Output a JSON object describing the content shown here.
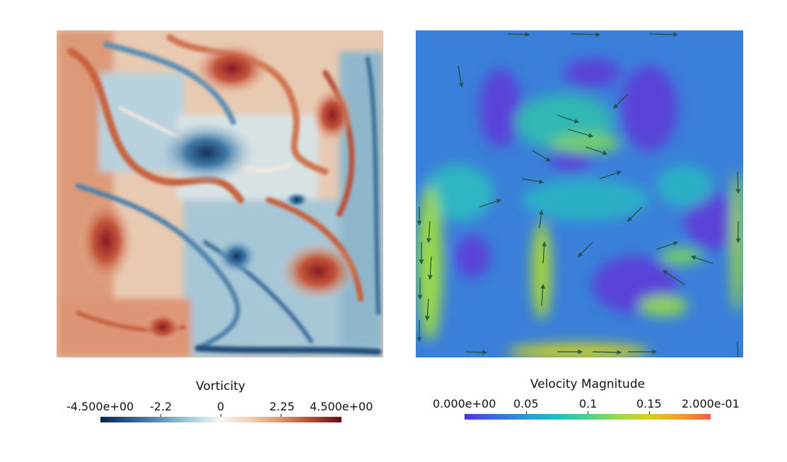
{
  "colorbars": {
    "vorticity": {
      "title": "Vorticity",
      "ticks": [
        "-4.500e+00",
        "-2.2",
        "0",
        "2.25",
        "4.500e+00"
      ],
      "colormap": [
        "#08224f",
        "#2c5c8a",
        "#5f95b9",
        "#aacfdf",
        "#f4f6f4",
        "#f2cdb1",
        "#de9268",
        "#b44a30",
        "#6a0a1c"
      ]
    },
    "velocity": {
      "title": "Velocity Magnitude",
      "ticks": [
        "0.000e+00",
        "0.05",
        "0.1",
        "0.15",
        "2.000e-01"
      ],
      "colormap": [
        "#4f34e6",
        "#3f6ae3",
        "#2a9bd6",
        "#1cc2c0",
        "#45d48f",
        "#9ad94a",
        "#d7d21c",
        "#f2a12a",
        "#f35a47"
      ]
    }
  }
}
